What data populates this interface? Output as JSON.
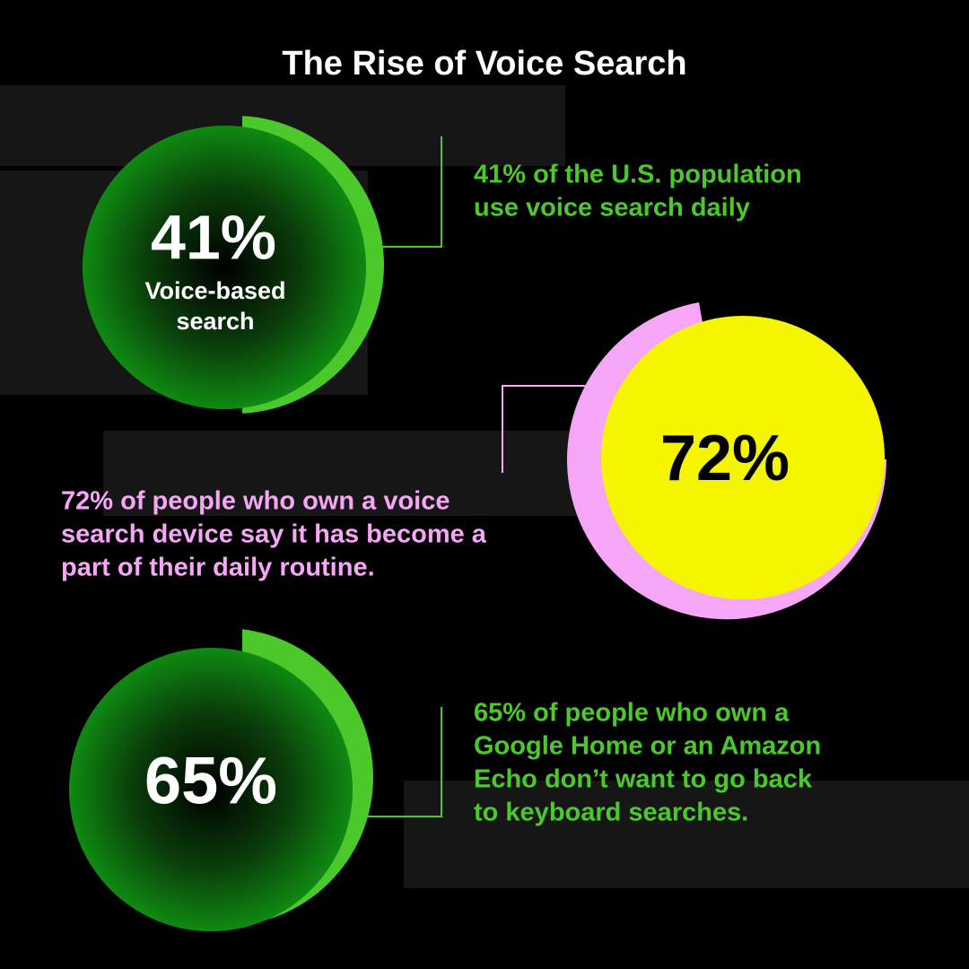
{
  "header": {
    "title": "The Rise of Voice Search"
  },
  "stats": [
    {
      "value": "41%",
      "sublabel": [
        "Voice-based",
        "search"
      ],
      "caption": [
        "41% of the U.S. population",
        "use voice search daily"
      ]
    },
    {
      "value": "72%",
      "caption": [
        "72% of people who own a voice",
        "search device say it has become a",
        "part of their daily routine."
      ]
    },
    {
      "value": "65%",
      "caption": [
        "65% of people who own a",
        "Google Home or an Amazon",
        "Echo don’t want to go back",
        "to keyboard searches."
      ]
    }
  ]
}
